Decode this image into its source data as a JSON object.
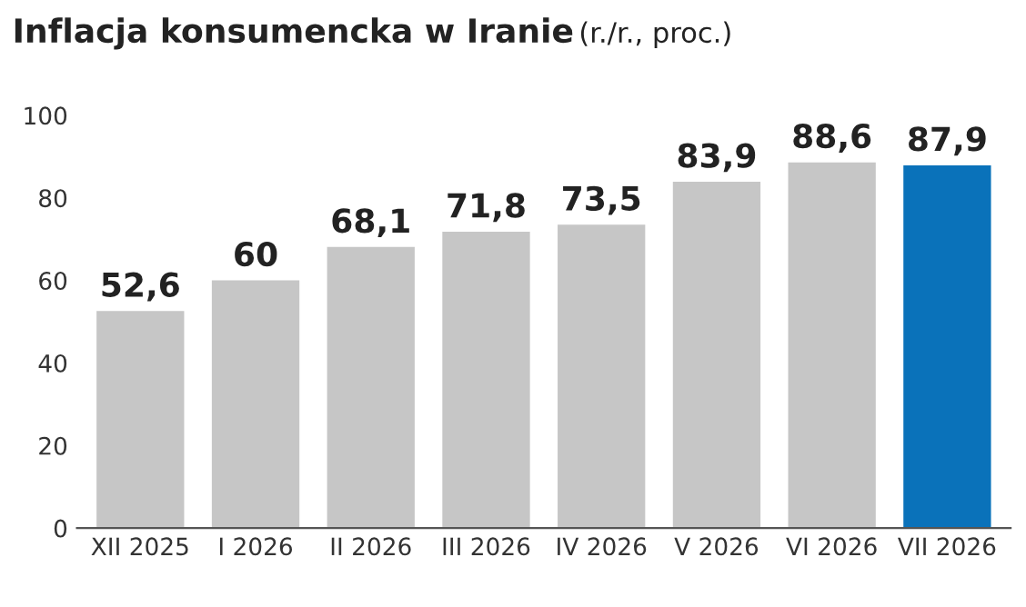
{
  "chart_data": {
    "type": "bar",
    "title": "Inflacja konsumencka w Iranie",
    "subtitle": "(r./r., proc.)",
    "categories": [
      "XII 2025",
      "I 2026",
      "II 2026",
      "III 2026",
      "IV 2026",
      "V 2026",
      "VI 2026",
      "VII 2026"
    ],
    "values": [
      52.6,
      60,
      68.1,
      71.8,
      73.5,
      83.9,
      88.6,
      87.9
    ],
    "value_labels": [
      "52,6",
      "60",
      "68,1",
      "71,8",
      "73,5",
      "83,9",
      "88,6",
      "87,9"
    ],
    "colors": [
      "#c6c6c6",
      "#c6c6c6",
      "#c6c6c6",
      "#c6c6c6",
      "#c6c6c6",
      "#c6c6c6",
      "#c6c6c6",
      "#0a72ba"
    ],
    "ylim": [
      0,
      100
    ],
    "yticks": [
      0,
      20,
      40,
      60,
      80,
      100
    ],
    "grid": false
  }
}
